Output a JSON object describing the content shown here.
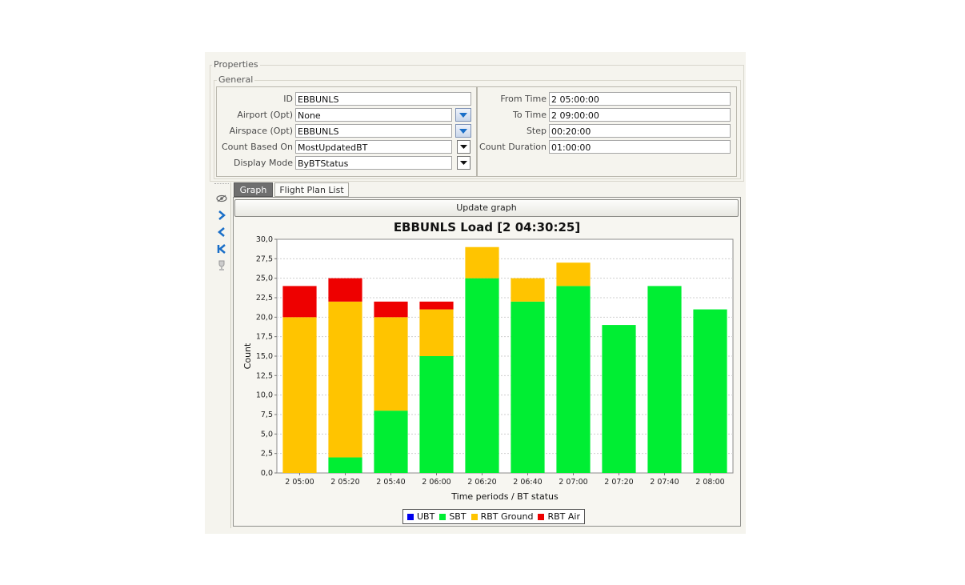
{
  "properties": {
    "title": "Properties",
    "general_title": "General",
    "left_fields": [
      {
        "label": "ID",
        "value": "EBBUNLS",
        "control": "text"
      },
      {
        "label": "Airport (Opt)",
        "value": "None",
        "control": "dropdown-blue"
      },
      {
        "label": "Airspace (Opt)",
        "value": "EBBUNLS",
        "control": "dropdown-blue"
      },
      {
        "label": "Count Based On",
        "value": "MostUpdatedBT",
        "control": "dropdown"
      },
      {
        "label": "Display Mode",
        "value": "ByBTStatus",
        "control": "dropdown"
      }
    ],
    "right_fields": [
      {
        "label": "From Time",
        "value": "2 05:00:00"
      },
      {
        "label": "To Time",
        "value": "2 09:00:00"
      },
      {
        "label": "Step",
        "value": "00:20:00"
      },
      {
        "label": "Count Duration",
        "value": "01:00:00"
      }
    ]
  },
  "side_icons": [
    "eye-icon",
    "chevron-right-icon",
    "chevron-left-icon",
    "skip-first-icon",
    "trophy-icon"
  ],
  "tabs": [
    {
      "label": "Graph",
      "active": true
    },
    {
      "label": "Flight Plan List",
      "active": false
    }
  ],
  "update_button": "Update graph",
  "colors": {
    "UBT": "#0000ee",
    "SBT": "#00ee33",
    "RBT Ground": "#ffc400",
    "RBT Air": "#ee0000"
  },
  "chart_data": {
    "type": "bar",
    "stacked": true,
    "title": "EBBUNLS Load [2 04:30:25]",
    "xlabel": "Time periods / BT status",
    "ylabel": "Count",
    "ylim": [
      0,
      30
    ],
    "yticks": [
      "0,0",
      "2,5",
      "5,0",
      "7,5",
      "10,0",
      "12,5",
      "15,0",
      "17,5",
      "20,0",
      "22,5",
      "25,0",
      "27,5",
      "30,0"
    ],
    "categories": [
      "2 05:00",
      "2 05:20",
      "2 05:40",
      "2 06:00",
      "2 06:20",
      "2 06:40",
      "2 07:00",
      "2 07:20",
      "2 07:40",
      "2 08:00"
    ],
    "series": [
      {
        "name": "UBT",
        "values": [
          0,
          0,
          0,
          0,
          0,
          0,
          0,
          0,
          0,
          0
        ]
      },
      {
        "name": "SBT",
        "values": [
          0,
          2,
          8,
          15,
          25,
          22,
          24,
          19,
          24,
          21
        ]
      },
      {
        "name": "RBT Ground",
        "values": [
          20,
          20,
          12,
          6,
          4,
          3,
          3,
          0,
          0,
          0
        ]
      },
      {
        "name": "RBT Air",
        "values": [
          4,
          3,
          2,
          1,
          0,
          0,
          0,
          0,
          0,
          0
        ]
      }
    ],
    "grid": true,
    "legend_position": "bottom"
  }
}
